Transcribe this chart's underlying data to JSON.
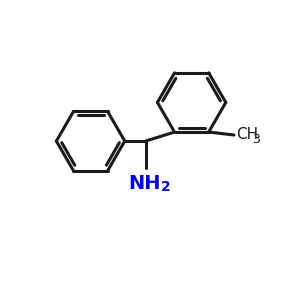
{
  "background": "#ffffff",
  "bond_color": "#1a1a1a",
  "nh2_color": "#0000ee",
  "ch3_color": "#1a1a1a",
  "bond_width": 2.2,
  "font_size_nh2": 14,
  "font_size_ch3": 11,
  "font_size_sub": 9
}
